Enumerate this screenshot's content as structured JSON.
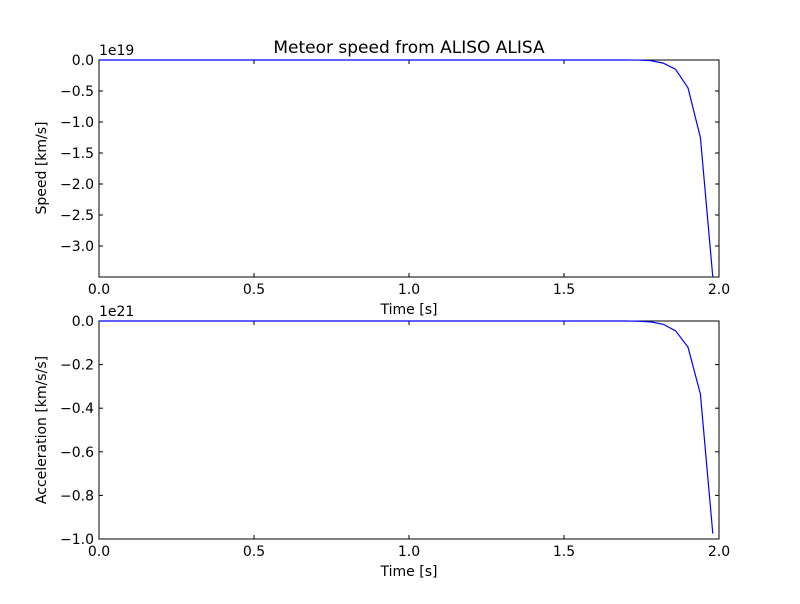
{
  "chart_data": [
    {
      "type": "line",
      "title": "Meteor speed from  ALISO ALISA",
      "xlabel": "Time [s]",
      "ylabel": "Speed [km/s]",
      "offset_text": "1e19",
      "xlim": [
        0.0,
        2.0
      ],
      "ylim": [
        -3.5,
        0.0
      ],
      "y_multiplier": 1e+19,
      "xticks": [
        "0.0",
        "0.5",
        "1.0",
        "1.5",
        "2.0"
      ],
      "yticks": [
        "0.0",
        "−0.5",
        "−1.0",
        "−1.5",
        "−2.0",
        "−2.5",
        "−3.0"
      ],
      "ytick_values": [
        0.0,
        -0.5,
        -1.0,
        -1.5,
        -2.0,
        -2.5,
        -3.0
      ],
      "series": [
        {
          "color": "#0000ff",
          "x": [
            0.0,
            0.5,
            1.0,
            1.5,
            1.7,
            1.74,
            1.78,
            1.82,
            1.86,
            1.9,
            1.94,
            1.98
          ],
          "y": [
            0.0,
            0.0,
            0.0,
            0.0,
            0.0,
            -0.001,
            -0.01,
            -0.05,
            -0.15,
            -0.45,
            -1.25,
            -3.5
          ]
        }
      ],
      "grid": false
    },
    {
      "type": "line",
      "title": "",
      "xlabel": "Time [s]",
      "ylabel": "Acceleration [km/s/s]",
      "offset_text": "1e21",
      "xlim": [
        0.0,
        2.0
      ],
      "ylim": [
        -1.0,
        0.0
      ],
      "y_multiplier": 1e+21,
      "xticks": [
        "0.0",
        "0.5",
        "1.0",
        "1.5",
        "2.0"
      ],
      "yticks": [
        "0.0",
        "−0.2",
        "−0.4",
        "−0.6",
        "−0.8",
        "−1.0"
      ],
      "ytick_values": [
        0.0,
        -0.2,
        -0.4,
        -0.6,
        -0.8,
        -1.0
      ],
      "series": [
        {
          "color": "#0000ff",
          "x": [
            0.0,
            0.5,
            1.0,
            1.5,
            1.7,
            1.74,
            1.78,
            1.82,
            1.86,
            1.9,
            1.94,
            1.98
          ],
          "y": [
            0.0,
            0.0,
            0.0,
            0.0,
            0.0,
            -0.001,
            -0.004,
            -0.015,
            -0.045,
            -0.12,
            -0.335,
            -0.975
          ]
        }
      ],
      "grid": false
    }
  ]
}
